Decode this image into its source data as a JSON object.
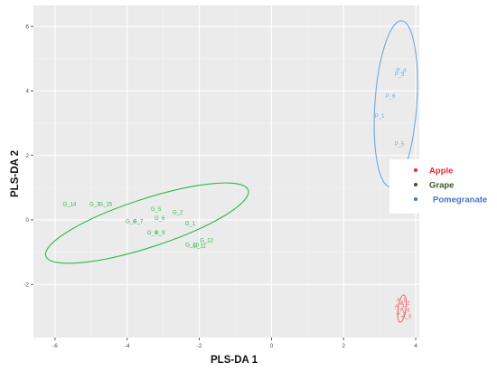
{
  "chart_data": {
    "type": "scatter",
    "xlabel": "PLS-DA 1",
    "ylabel": "PLS-DA 2",
    "xlim": [
      -6.6,
      4.1
    ],
    "ylim": [
      -3.65,
      6.65
    ],
    "x_ticks": [
      -6,
      -4,
      -2,
      0,
      2,
      4
    ],
    "y_ticks": [
      -2,
      0,
      2,
      4,
      6
    ],
    "x_tick_labels": [
      "-6",
      "-4",
      "-2",
      "0",
      "2",
      "4"
    ],
    "y_tick_labels": [
      "-2",
      "0",
      "2",
      "4",
      "6"
    ],
    "grid": true,
    "legend_position": "right",
    "legend": [
      {
        "label": "Apple",
        "color": "#e8272b"
      },
      {
        "label": "Grape",
        "color": "#375623"
      },
      {
        "label": "Pomegranate",
        "color": "#4472c4"
      }
    ],
    "series": [
      {
        "name": "Apple",
        "color": "#f0706b",
        "points": [
          {
            "label": "A_1",
            "x": 3.6,
            "y": -2.5
          },
          {
            "label": "A_2",
            "x": 3.7,
            "y": -2.6
          },
          {
            "label": "A_3",
            "x": 3.55,
            "y": -2.7
          },
          {
            "label": "A_4",
            "x": 3.7,
            "y": -2.8
          },
          {
            "label": "A_5",
            "x": 3.6,
            "y": -2.9
          },
          {
            "label": "A_6",
            "x": 3.75,
            "y": -3.0
          }
        ],
        "ellipse": {
          "cx": 3.62,
          "cy": -2.75,
          "rx": 0.38,
          "ry": 0.12,
          "angle_deg": -82
        }
      },
      {
        "name": "Grape",
        "color": "#2db84d",
        "points": [
          {
            "label": "G_14",
            "x": -5.6,
            "y": 0.48
          },
          {
            "label": "G_3",
            "x": -4.9,
            "y": 0.48
          },
          {
            "label": "G_15",
            "x": -4.6,
            "y": 0.48
          },
          {
            "label": "G_5",
            "x": -3.2,
            "y": 0.33
          },
          {
            "label": "G_2",
            "x": -2.6,
            "y": 0.22
          },
          {
            "label": "G_6",
            "x": -3.1,
            "y": 0.04
          },
          {
            "label": "G_8",
            "x": -3.9,
            "y": -0.06
          },
          {
            "label": "G_7",
            "x": -3.7,
            "y": -0.06
          },
          {
            "label": "G_1",
            "x": -2.25,
            "y": -0.13
          },
          {
            "label": "G_4",
            "x": -3.3,
            "y": -0.4
          },
          {
            "label": "G_9",
            "x": -3.1,
            "y": -0.4
          },
          {
            "label": "G_12",
            "x": -1.8,
            "y": -0.65
          },
          {
            "label": "G_10",
            "x": -2.2,
            "y": -0.78
          },
          {
            "label": "G_11",
            "x": -2.0,
            "y": -0.82
          }
        ],
        "ellipse": {
          "cx": -3.45,
          "cy": -0.1,
          "rx": 2.95,
          "ry": 0.75,
          "angle_deg": -18
        }
      },
      {
        "name": "Pomegranate",
        "color": "#6fa8dc",
        "points": [
          {
            "label": "P_4",
            "x": 3.6,
            "y": 4.63
          },
          {
            "label": "P_3",
            "x": 3.55,
            "y": 4.5
          },
          {
            "label": "P_6",
            "x": 3.3,
            "y": 3.83
          },
          {
            "label": "P_1",
            "x": 3.0,
            "y": 3.22
          },
          {
            "label": "P_5",
            "x": 3.55,
            "y": 2.35
          }
        ],
        "ellipse": {
          "cx": 3.45,
          "cy": 3.6,
          "rx": 0.58,
          "ry": 2.58,
          "angle_deg": 4
        }
      }
    ]
  }
}
